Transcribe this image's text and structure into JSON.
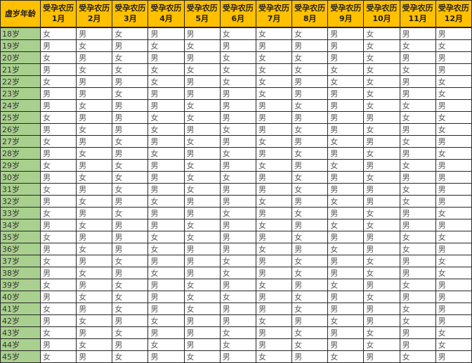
{
  "colors": {
    "header_bg": "#FFC000",
    "header_text": "#1F1F1F",
    "age_col_bg": "#A9D08E",
    "age_text": "#333333",
    "cell_bg": "#FFFFFF",
    "cell_text": "#595959",
    "border": "#262626"
  },
  "chart_data": {
    "type": "table",
    "corner_header": "虚岁年龄",
    "month_header_line1": "受孕农历",
    "month_headers": [
      "1月",
      "2月",
      "3月",
      "4月",
      "5月",
      "6月",
      "7月",
      "8月",
      "9月",
      "10月",
      "11月",
      "12月"
    ],
    "male_label": "男",
    "female_label": "女",
    "rows": [
      {
        "age": "18岁",
        "values": [
          "女",
          "男",
          "女",
          "男",
          "男",
          "女",
          "女",
          "女",
          "男",
          "女",
          "男",
          "男"
        ]
      },
      {
        "age": "19岁",
        "values": [
          "男",
          "女",
          "男",
          "女",
          "女",
          "男",
          "男",
          "男",
          "男",
          "女",
          "女",
          "女"
        ]
      },
      {
        "age": "20岁",
        "values": [
          "女",
          "男",
          "女",
          "男",
          "男",
          "女",
          "女",
          "女",
          "男",
          "女",
          "男",
          "男"
        ]
      },
      {
        "age": "21岁",
        "values": [
          "男",
          "女",
          "女",
          "女",
          "女",
          "女",
          "女",
          "女",
          "女",
          "女",
          "女",
          "男"
        ]
      },
      {
        "age": "22岁",
        "values": [
          "女",
          "男",
          "男",
          "女",
          "男",
          "女",
          "女",
          "男",
          "女",
          "女",
          "男",
          "女"
        ]
      },
      {
        "age": "23岁",
        "values": [
          "男",
          "男",
          "女",
          "男",
          "男",
          "男",
          "女",
          "男",
          "男",
          "女",
          "男",
          "女"
        ]
      },
      {
        "age": "24岁",
        "values": [
          "男",
          "女",
          "男",
          "男",
          "女",
          "男",
          "男",
          "女",
          "男",
          "女",
          "女",
          "男"
        ]
      },
      {
        "age": "25岁",
        "values": [
          "女",
          "男",
          "男",
          "女",
          "女",
          "男",
          "男",
          "男",
          "男",
          "男",
          "女",
          "女"
        ]
      },
      {
        "age": "26岁",
        "values": [
          "男",
          "女",
          "男",
          "女",
          "男",
          "女",
          "男",
          "女",
          "男",
          "女",
          "男",
          "女"
        ]
      },
      {
        "age": "27岁",
        "values": [
          "女",
          "男",
          "女",
          "男",
          "女",
          "男",
          "女",
          "男",
          "女",
          "男",
          "女",
          "男"
        ]
      },
      {
        "age": "28岁",
        "values": [
          "男",
          "女",
          "男",
          "女",
          "男",
          "女",
          "男",
          "女",
          "男",
          "女",
          "男",
          "女"
        ]
      },
      {
        "age": "29岁",
        "values": [
          "女",
          "男",
          "女",
          "男",
          "女",
          "男",
          "女",
          "男",
          "女",
          "男",
          "女",
          "男"
        ]
      },
      {
        "age": "30岁",
        "values": [
          "男",
          "女",
          "女",
          "男",
          "女",
          "女",
          "男",
          "女",
          "男",
          "女",
          "男",
          "男"
        ]
      },
      {
        "age": "31岁",
        "values": [
          "女",
          "男",
          "女",
          "男",
          "女",
          "男",
          "男",
          "女",
          "男",
          "男",
          "女",
          "男"
        ]
      },
      {
        "age": "32岁",
        "values": [
          "男",
          "女",
          "男",
          "女",
          "男",
          "男",
          "女",
          "男",
          "女",
          "男",
          "女",
          "男"
        ]
      },
      {
        "age": "33岁",
        "values": [
          "女",
          "男",
          "女",
          "男",
          "男",
          "女",
          "男",
          "女",
          "男",
          "女",
          "男",
          "女"
        ]
      },
      {
        "age": "34岁",
        "values": [
          "男",
          "女",
          "男",
          "男",
          "女",
          "男",
          "女",
          "男",
          "女",
          "女",
          "男",
          "男"
        ]
      },
      {
        "age": "35岁",
        "values": [
          "女",
          "男",
          "男",
          "女",
          "女",
          "男",
          "男",
          "女",
          "男",
          "男",
          "女",
          "女"
        ]
      },
      {
        "age": "36岁",
        "values": [
          "男",
          "女",
          "男",
          "女",
          "男",
          "男",
          "女",
          "男",
          "女",
          "男",
          "女",
          "男"
        ]
      },
      {
        "age": "37岁",
        "values": [
          "女",
          "男",
          "女",
          "男",
          "男",
          "女",
          "男",
          "女",
          "男",
          "女",
          "男",
          "女"
        ]
      },
      {
        "age": "38岁",
        "values": [
          "男",
          "女",
          "男",
          "女",
          "男",
          "女",
          "男",
          "女",
          "男",
          "女",
          "男",
          "女"
        ]
      },
      {
        "age": "39岁",
        "values": [
          "女",
          "男",
          "女",
          "男",
          "女",
          "男",
          "女",
          "男",
          "女",
          "男",
          "女",
          "男"
        ]
      },
      {
        "age": "40岁",
        "values": [
          "男",
          "女",
          "女",
          "男",
          "女",
          "女",
          "男",
          "女",
          "男",
          "女",
          "男",
          "男"
        ]
      },
      {
        "age": "41岁",
        "values": [
          "女",
          "男",
          "女",
          "男",
          "女",
          "男",
          "男",
          "女",
          "男",
          "男",
          "女",
          "男"
        ]
      },
      {
        "age": "42岁",
        "values": [
          "男",
          "女",
          "男",
          "女",
          "男",
          "男",
          "女",
          "男",
          "女",
          "男",
          "女",
          "男"
        ]
      },
      {
        "age": "43岁",
        "values": [
          "女",
          "男",
          "女",
          "男",
          "男",
          "女",
          "男",
          "女",
          "男",
          "女",
          "男",
          "女"
        ]
      },
      {
        "age": "44岁",
        "values": [
          "男",
          "女",
          "男",
          "女",
          "男",
          "女",
          "男",
          "女",
          "男",
          "女",
          "男",
          "女"
        ]
      },
      {
        "age": "45岁",
        "values": [
          "女",
          "男",
          "女",
          "男",
          "女",
          "男",
          "女",
          "男",
          "女",
          "男",
          "女",
          "男"
        ]
      }
    ]
  }
}
